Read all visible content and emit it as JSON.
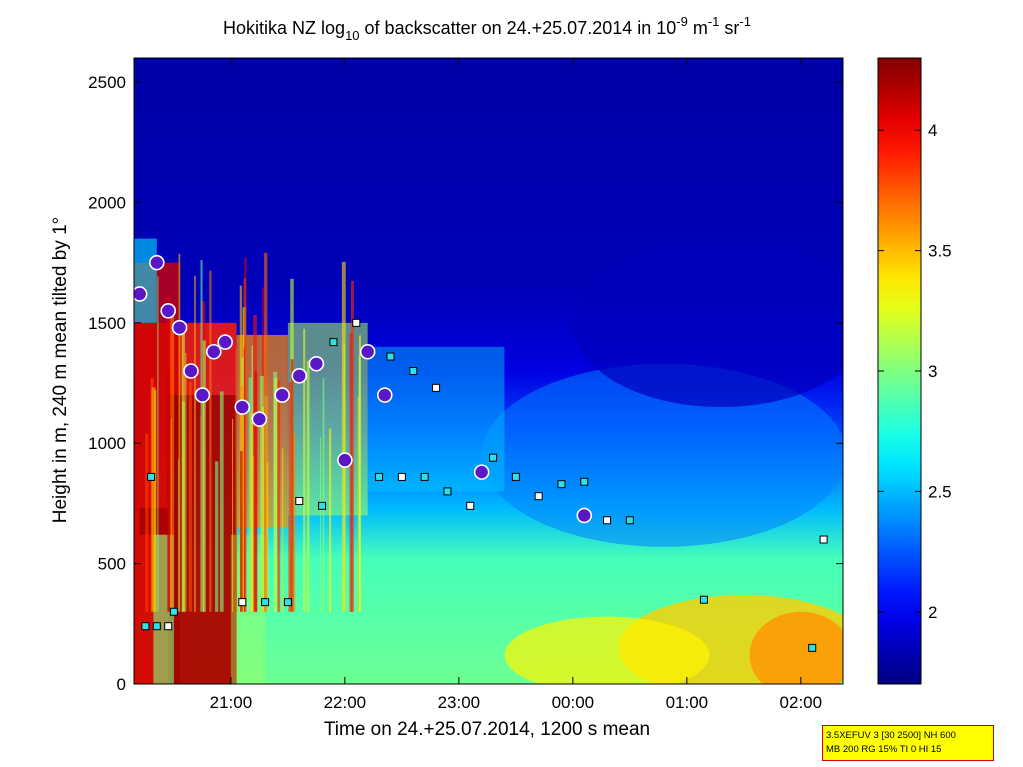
{
  "chart_data": {
    "type": "heatmap",
    "title": {
      "prefix": "Hokitika NZ log",
      "log_base": "10",
      "middle": " of backscatter on 24.+25.07.2014 in 10",
      "exp1": "-9",
      "mid2": " m",
      "exp2": "-1",
      "mid3": " sr",
      "exp3": "-1"
    },
    "xlabel": "Time on 24.+25.07.2014, 1200 s mean",
    "ylabel": "Height in m, 240 m mean tilted by 1°",
    "x_ticks": [
      {
        "label": "21:00",
        "hour": 21
      },
      {
        "label": "22:00",
        "hour": 22
      },
      {
        "label": "23:00",
        "hour": 23
      },
      {
        "label": "00:00",
        "hour": 24
      },
      {
        "label": "01:00",
        "hour": 25
      },
      {
        "label": "02:00",
        "hour": 26
      }
    ],
    "xlim_hours": [
      20.15,
      26.37
    ],
    "y_ticks": [
      0,
      500,
      1000,
      1500,
      2000,
      2500
    ],
    "ylim": [
      0,
      2600
    ],
    "colorbar": {
      "ticks": [
        2,
        2.5,
        3,
        3.5,
        4
      ],
      "range": [
        1.7,
        4.3
      ],
      "colormap": "jet"
    },
    "cloud_markers": [
      {
        "hour": 20.25,
        "height": 240
      },
      {
        "hour": 20.35,
        "height": 240
      },
      {
        "hour": 20.45,
        "height": 240
      },
      {
        "hour": 20.5,
        "height": 300
      },
      {
        "hour": 20.3,
        "height": 860
      },
      {
        "hour": 21.1,
        "height": 340
      },
      {
        "hour": 21.3,
        "height": 340
      },
      {
        "hour": 21.5,
        "height": 340
      },
      {
        "hour": 21.6,
        "height": 760
      },
      {
        "hour": 21.8,
        "height": 740
      },
      {
        "hour": 22.3,
        "height": 860
      },
      {
        "hour": 22.5,
        "height": 860
      },
      {
        "hour": 22.7,
        "height": 860
      },
      {
        "hour": 22.9,
        "height": 800
      },
      {
        "hour": 23.1,
        "height": 740
      },
      {
        "hour": 23.3,
        "height": 940
      },
      {
        "hour": 23.5,
        "height": 860
      },
      {
        "hour": 23.7,
        "height": 780
      },
      {
        "hour": 23.9,
        "height": 830
      },
      {
        "hour": 24.1,
        "height": 840
      },
      {
        "hour": 24.3,
        "height": 680
      },
      {
        "hour": 24.5,
        "height": 680
      },
      {
        "hour": 25.15,
        "height": 350
      },
      {
        "hour": 26.2,
        "height": 600
      },
      {
        "hour": 26.1,
        "height": 150
      },
      {
        "hour": 22.4,
        "height": 1360
      },
      {
        "hour": 22.8,
        "height": 1230
      },
      {
        "hour": 22.6,
        "height": 1300
      },
      {
        "hour": 21.9,
        "height": 1420
      },
      {
        "hour": 22.1,
        "height": 1500
      }
    ],
    "aerosol_top_markers": [
      {
        "hour": 20.2,
        "height": 1620
      },
      {
        "hour": 20.35,
        "height": 1750
      },
      {
        "hour": 20.45,
        "height": 1550
      },
      {
        "hour": 20.55,
        "height": 1480
      },
      {
        "hour": 20.65,
        "height": 1300
      },
      {
        "hour": 20.75,
        "height": 1200
      },
      {
        "hour": 20.85,
        "height": 1380
      },
      {
        "hour": 20.95,
        "height": 1420
      },
      {
        "hour": 21.1,
        "height": 1150
      },
      {
        "hour": 21.25,
        "height": 1100
      },
      {
        "hour": 21.45,
        "height": 1200
      },
      {
        "hour": 21.6,
        "height": 1280
      },
      {
        "hour": 21.75,
        "height": 1330
      },
      {
        "hour": 22.0,
        "height": 930
      },
      {
        "hour": 22.2,
        "height": 1380
      },
      {
        "hour": 22.35,
        "height": 1200
      },
      {
        "hour": 24.1,
        "height": 700
      },
      {
        "hour": 23.2,
        "height": 880
      }
    ]
  },
  "params_box": {
    "line1": "3.5XEFUV 3 [30 2500] NH 600",
    "line2": "MB 200 RG 15% TI 0 HI 15"
  }
}
